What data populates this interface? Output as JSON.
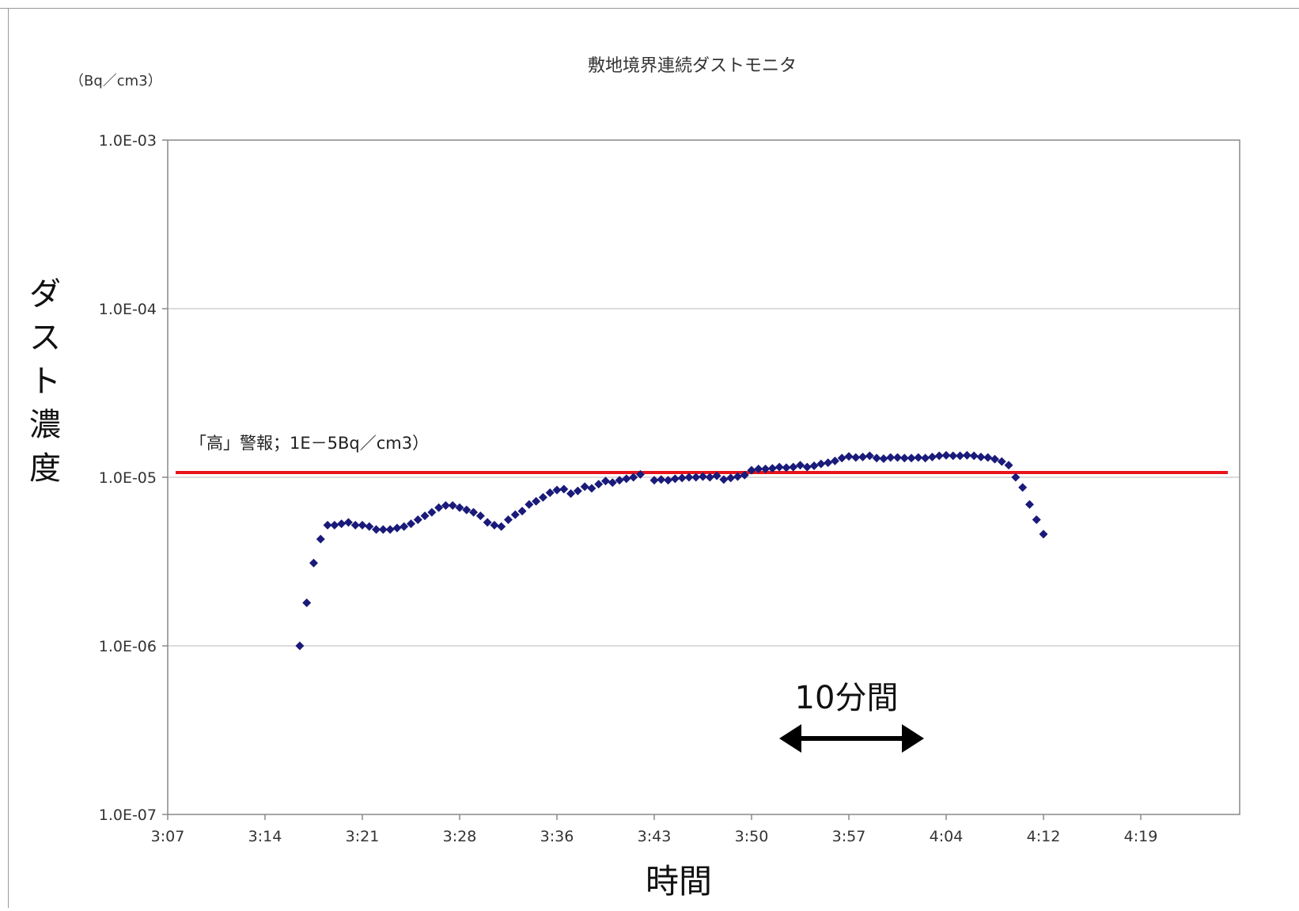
{
  "chart_data": {
    "type": "scatter",
    "title": "敷地境界連続ダストモニタ",
    "unit_label": "（Bq／cm3）",
    "ylabel_vertical": [
      "ダ",
      "ス",
      "ト",
      "濃",
      "度"
    ],
    "xlabel": "時間",
    "y_scale": "log",
    "ylim": [
      1e-07,
      0.001
    ],
    "y_ticks": [
      {
        "value": 0.001,
        "label": "1.0E-03"
      },
      {
        "value": 0.0001,
        "label": "1.0E-04"
      },
      {
        "value": 1e-05,
        "label": "1.0E-05"
      },
      {
        "value": 1e-06,
        "label": "1.0E-06"
      },
      {
        "value": 1e-07,
        "label": "1.0E-07"
      }
    ],
    "x_unit": "minutes after 3:07",
    "xlim": [
      0,
      77
    ],
    "x_ticks": [
      "3:07",
      "3:14",
      "3:21",
      "3:28",
      "3:36",
      "3:43",
      "3:50",
      "3:57",
      "4:04",
      "4:12",
      "4:19"
    ],
    "grid": "horizontal",
    "threshold": {
      "value": 1e-05,
      "label": "「高」警報；1E－5Bq／cm3）",
      "color": "#e8141b"
    },
    "annotation": {
      "text": "10分間",
      "arrow": "double-headed"
    },
    "marker_color": "#1a1a7a",
    "series": [
      {
        "values": [
          [
            9.5,
            1e-06
          ],
          [
            10.0,
            1.8e-06
          ],
          [
            10.5,
            3.1e-06
          ],
          [
            11.0,
            4.3e-06
          ],
          [
            11.5,
            5.2e-06
          ],
          [
            12.0,
            5.2e-06
          ],
          [
            12.5,
            5.3e-06
          ],
          [
            13.0,
            5.4e-06
          ],
          [
            13.5,
            5.2e-06
          ],
          [
            14.0,
            5.2e-06
          ],
          [
            14.5,
            5.1e-06
          ],
          [
            15.0,
            4.9e-06
          ],
          [
            15.5,
            4.9e-06
          ],
          [
            16.0,
            4.9e-06
          ],
          [
            16.5,
            5e-06
          ],
          [
            17.0,
            5.1e-06
          ],
          [
            17.5,
            5.3e-06
          ],
          [
            18.0,
            5.6e-06
          ],
          [
            18.5,
            5.9e-06
          ],
          [
            19.0,
            6.2e-06
          ],
          [
            19.5,
            6.6e-06
          ],
          [
            20.0,
            6.8e-06
          ],
          [
            20.5,
            6.8e-06
          ],
          [
            21.0,
            6.6e-06
          ],
          [
            21.5,
            6.4e-06
          ],
          [
            22.0,
            6.2e-06
          ],
          [
            22.5,
            5.9e-06
          ],
          [
            23.0,
            5.4e-06
          ],
          [
            23.5,
            5.2e-06
          ],
          [
            24.0,
            5.1e-06
          ],
          [
            24.5,
            5.6e-06
          ],
          [
            25.0,
            6e-06
          ],
          [
            25.5,
            6.3e-06
          ],
          [
            26.0,
            6.9e-06
          ],
          [
            26.5,
            7.2e-06
          ],
          [
            27.0,
            7.6e-06
          ],
          [
            27.5,
            8.1e-06
          ],
          [
            28.0,
            8.4e-06
          ],
          [
            28.5,
            8.5e-06
          ],
          [
            29.0,
            8e-06
          ],
          [
            29.5,
            8.3e-06
          ],
          [
            30.0,
            8.8e-06
          ],
          [
            30.5,
            8.6e-06
          ],
          [
            31.0,
            9.1e-06
          ],
          [
            31.5,
            9.5e-06
          ],
          [
            32.0,
            9.3e-06
          ],
          [
            32.5,
            9.6e-06
          ],
          [
            33.0,
            9.8e-06
          ],
          [
            33.5,
            1e-05
          ],
          [
            34.0,
            1.04e-05
          ],
          [
            35.0,
            9.6e-06
          ],
          [
            35.5,
            9.7e-06
          ],
          [
            36.0,
            9.6e-06
          ],
          [
            36.5,
            9.8e-06
          ],
          [
            37.0,
            9.9e-06
          ],
          [
            37.5,
            1e-05
          ],
          [
            38.0,
            1e-05
          ],
          [
            38.5,
            1.01e-05
          ],
          [
            39.0,
            1e-05
          ],
          [
            39.5,
            1.02e-05
          ],
          [
            40.0,
            9.7e-06
          ],
          [
            40.5,
            9.9e-06
          ],
          [
            41.0,
            1.01e-05
          ],
          [
            41.5,
            1.03e-05
          ],
          [
            42.0,
            1.1e-05
          ],
          [
            42.5,
            1.12e-05
          ],
          [
            43.0,
            1.12e-05
          ],
          [
            43.5,
            1.13e-05
          ],
          [
            44.0,
            1.15e-05
          ],
          [
            44.5,
            1.14e-05
          ],
          [
            45.0,
            1.15e-05
          ],
          [
            45.5,
            1.18e-05
          ],
          [
            46.0,
            1.15e-05
          ],
          [
            46.5,
            1.17e-05
          ],
          [
            47.0,
            1.2e-05
          ],
          [
            47.5,
            1.22e-05
          ],
          [
            48.0,
            1.25e-05
          ],
          [
            48.5,
            1.3e-05
          ],
          [
            49.0,
            1.33e-05
          ],
          [
            49.5,
            1.31e-05
          ],
          [
            50.0,
            1.32e-05
          ],
          [
            50.5,
            1.34e-05
          ],
          [
            51.0,
            1.3e-05
          ],
          [
            51.5,
            1.29e-05
          ],
          [
            52.0,
            1.31e-05
          ],
          [
            52.5,
            1.31e-05
          ],
          [
            53.0,
            1.3e-05
          ],
          [
            53.5,
            1.3e-05
          ],
          [
            54.0,
            1.31e-05
          ],
          [
            54.5,
            1.3e-05
          ],
          [
            55.0,
            1.32e-05
          ],
          [
            55.5,
            1.34e-05
          ],
          [
            56.0,
            1.35e-05
          ],
          [
            56.5,
            1.34e-05
          ],
          [
            57.0,
            1.34e-05
          ],
          [
            57.5,
            1.35e-05
          ],
          [
            58.0,
            1.34e-05
          ],
          [
            58.5,
            1.32e-05
          ],
          [
            59.0,
            1.31e-05
          ],
          [
            59.5,
            1.28e-05
          ],
          [
            60.0,
            1.24e-05
          ],
          [
            60.5,
            1.18e-05
          ],
          [
            61.0,
            1e-05
          ],
          [
            61.5,
            8.7e-06
          ],
          [
            62.0,
            6.9e-06
          ],
          [
            62.5,
            5.6e-06
          ],
          [
            63.0,
            4.6e-06
          ]
        ]
      }
    ]
  }
}
